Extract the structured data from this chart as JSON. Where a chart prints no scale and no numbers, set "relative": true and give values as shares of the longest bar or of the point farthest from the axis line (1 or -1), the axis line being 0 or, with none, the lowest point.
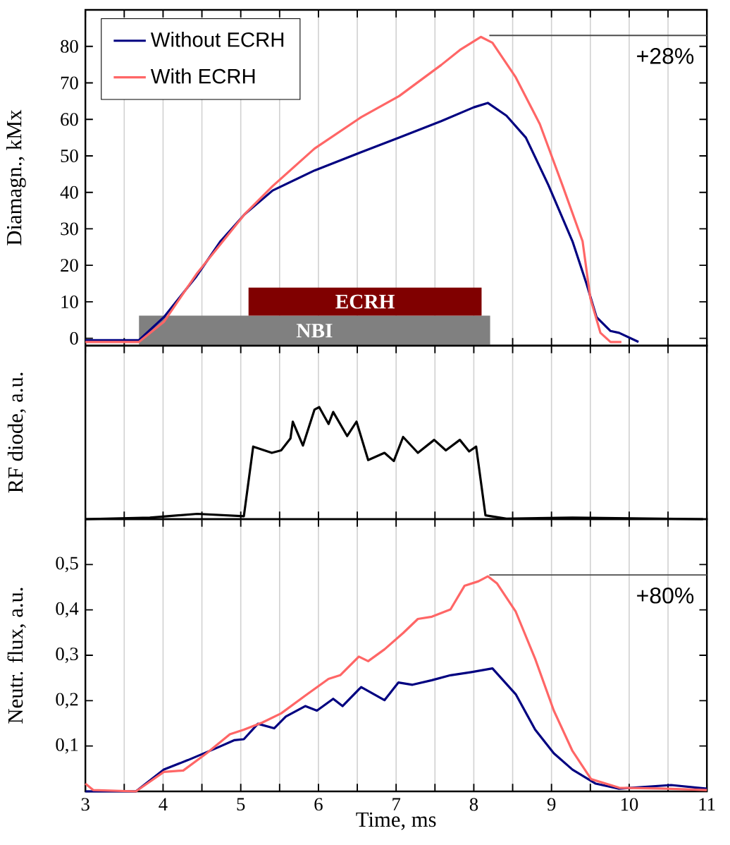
{
  "chart_data": [
    {
      "type": "line",
      "ylabel": "Diamagn., kMx",
      "xlim": [
        3,
        11
      ],
      "ylim": [
        -2,
        90
      ],
      "xticks": [
        3,
        {
          "value": 3.5,
          "label": null
        },
        4,
        {
          "value": 4.5,
          "label": null
        },
        5,
        {
          "value": 5.5,
          "label": null
        },
        6,
        {
          "value": 6.5,
          "label": null
        },
        7,
        {
          "value": 7.5,
          "label": null
        },
        8,
        {
          "value": 8.5,
          "label": null
        },
        9,
        {
          "value": 9.5,
          "label": null
        },
        10,
        {
          "value": 10.5,
          "label": null
        },
        11
      ],
      "yticks": [
        0,
        10,
        20,
        30,
        40,
        50,
        60,
        70,
        80
      ],
      "tick_labels": "y",
      "grid": "x",
      "legend": "top left",
      "marker": "none",
      "line_style": "solid",
      "series": [
        {
          "name": "Without ECRH",
          "color": "#000080",
          "x": [
            3.0,
            3.69,
            4.01,
            4.43,
            4.74,
            5.05,
            5.41,
            5.95,
            6.55,
            7.04,
            7.58,
            8.0,
            8.18,
            8.42,
            8.67,
            8.96,
            9.27,
            9.45,
            9.58,
            9.76,
            9.87,
            10.12
          ],
          "values": [
            -0.5,
            -0.5,
            5.8,
            17,
            26.6,
            34,
            40.5,
            46,
            51,
            55,
            59.5,
            63.3,
            64.5,
            61,
            55,
            42,
            26.6,
            15,
            5.8,
            2,
            1.5,
            -1
          ]
        },
        {
          "name": "With ECRH",
          "color": "#ff6666",
          "x": [
            3.0,
            3.69,
            4.01,
            4.43,
            5.05,
            5.41,
            5.95,
            6.55,
            7.04,
            7.58,
            7.82,
            8.09,
            8.24,
            8.54,
            8.85,
            9.14,
            9.4,
            9.5,
            9.63,
            9.76,
            9.9
          ],
          "values": [
            -1,
            -1,
            4.5,
            17.6,
            34,
            41.7,
            52,
            60.6,
            66.4,
            74.9,
            79,
            82.6,
            81,
            71.5,
            58.7,
            42,
            26.6,
            11,
            1.5,
            -1,
            -1
          ]
        }
      ],
      "bands": [
        {
          "axis": "x",
          "from": 3.69,
          "to": 8.21,
          "label": "NBI",
          "color": "#808080"
        },
        {
          "axis": "x",
          "from": 5.1,
          "to": 8.1,
          "label": "ECRH",
          "color": "#800000"
        }
      ],
      "annotations": [
        {
          "text": "+28%",
          "x": 8.2,
          "y": 83
        }
      ]
    },
    {
      "type": "line",
      "ylabel": "RF diode, a.u.",
      "xlim": [
        3,
        11
      ],
      "relative": true,
      "xticks": [
        3,
        {
          "value": 3.5,
          "label": null
        },
        4,
        {
          "value": 4.5,
          "label": null
        },
        5,
        {
          "value": 5.5,
          "label": null
        },
        6,
        {
          "value": 6.5,
          "label": null
        },
        7,
        {
          "value": 7.5,
          "label": null
        },
        8,
        {
          "value": 8.5,
          "label": null
        },
        9,
        {
          "value": 9.5,
          "label": null
        },
        10,
        {
          "value": 10.5,
          "label": null
        },
        11
      ],
      "tick_labels": false,
      "grid": "x",
      "marker": "none",
      "line_style": "solid",
      "series": [
        {
          "color": "#000000",
          "x": [
            3.0,
            3.83,
            4.44,
            5.04,
            5.16,
            5.4,
            5.52,
            5.64,
            5.67,
            5.8,
            5.95,
            6.01,
            6.13,
            6.19,
            6.37,
            6.49,
            6.64,
            6.85,
            6.97,
            7.09,
            7.28,
            7.49,
            7.64,
            7.82,
            7.94,
            8.03,
            8.15,
            8.42,
            9.27,
            10.95
          ],
          "values": [
            0,
            0.013,
            0.047,
            0.026,
            0.648,
            0.592,
            0.614,
            0.721,
            0.871,
            0.657,
            0.979,
            1.0,
            0.85,
            0.957,
            0.742,
            0.871,
            0.528,
            0.592,
            0.519,
            0.734,
            0.592,
            0.708,
            0.614,
            0.708,
            0.605,
            0.648,
            0.034,
            0.004,
            0.013,
            0
          ]
        }
      ]
    },
    {
      "type": "line",
      "ylabel": "Neutr. flux, a.u.",
      "xlabel": "Time, ms",
      "xlim": [
        3,
        11
      ],
      "ylim": [
        0,
        0.6
      ],
      "xticks": [
        3,
        {
          "value": 3.5,
          "label": null
        },
        4,
        {
          "value": 4.5,
          "label": null
        },
        5,
        {
          "value": 5.5,
          "label": null
        },
        6,
        {
          "value": 6.5,
          "label": null
        },
        7,
        {
          "value": 7.5,
          "label": null
        },
        8,
        {
          "value": 8.5,
          "label": null
        },
        9,
        {
          "value": 9.5,
          "label": null
        },
        10,
        {
          "value": 10.5,
          "label": null
        },
        11
      ],
      "yticks": [
        {
          "value": 0.1,
          "label": "0,1"
        },
        {
          "value": 0.2,
          "label": "0,2"
        },
        {
          "value": 0.3,
          "label": "0,3"
        },
        {
          "value": 0.4,
          "label": "0,4"
        },
        {
          "value": 0.5,
          "label": "0,5"
        }
      ],
      "grid": "x",
      "marker": "none",
      "line_style": "solid",
      "series": [
        {
          "color": "#000080",
          "x": [
            3.0,
            3.65,
            4.01,
            4.32,
            4.68,
            4.92,
            5.04,
            5.22,
            5.43,
            5.58,
            5.83,
            5.98,
            6.19,
            6.31,
            6.55,
            6.85,
            7.03,
            7.21,
            7.46,
            7.7,
            7.97,
            8.24,
            8.54,
            8.79,
            9.03,
            9.27,
            9.57,
            9.87,
            10.54,
            11.0
          ],
          "values": [
            0,
            0,
            0.048,
            0.069,
            0.095,
            0.113,
            0.115,
            0.149,
            0.139,
            0.165,
            0.188,
            0.178,
            0.204,
            0.188,
            0.23,
            0.201,
            0.24,
            0.235,
            0.245,
            0.256,
            0.263,
            0.271,
            0.214,
            0.136,
            0.084,
            0.048,
            0.017,
            0.006,
            0.014,
            0.006
          ]
        },
        {
          "color": "#ff6666",
          "x": [
            3.0,
            3.1,
            3.65,
            4.01,
            4.26,
            4.56,
            4.86,
            5.04,
            5.28,
            5.52,
            5.83,
            6.13,
            6.28,
            6.52,
            6.64,
            6.85,
            7.09,
            7.28,
            7.46,
            7.7,
            7.88,
            8.06,
            8.18,
            8.3,
            8.54,
            8.79,
            9.03,
            9.27,
            9.51,
            9.87,
            10.48,
            11.0
          ],
          "values": [
            0.017,
            0.003,
            0,
            0.043,
            0.046,
            0.084,
            0.126,
            0.136,
            0.152,
            0.172,
            0.211,
            0.248,
            0.256,
            0.297,
            0.287,
            0.313,
            0.349,
            0.38,
            0.385,
            0.401,
            0.453,
            0.463,
            0.474,
            0.458,
            0.396,
            0.292,
            0.178,
            0.089,
            0.027,
            0.008,
            0.006,
            0.003
          ]
        }
      ],
      "annotations": [
        {
          "text": "+80%",
          "x": 8.2,
          "y": 0.477
        }
      ]
    }
  ]
}
